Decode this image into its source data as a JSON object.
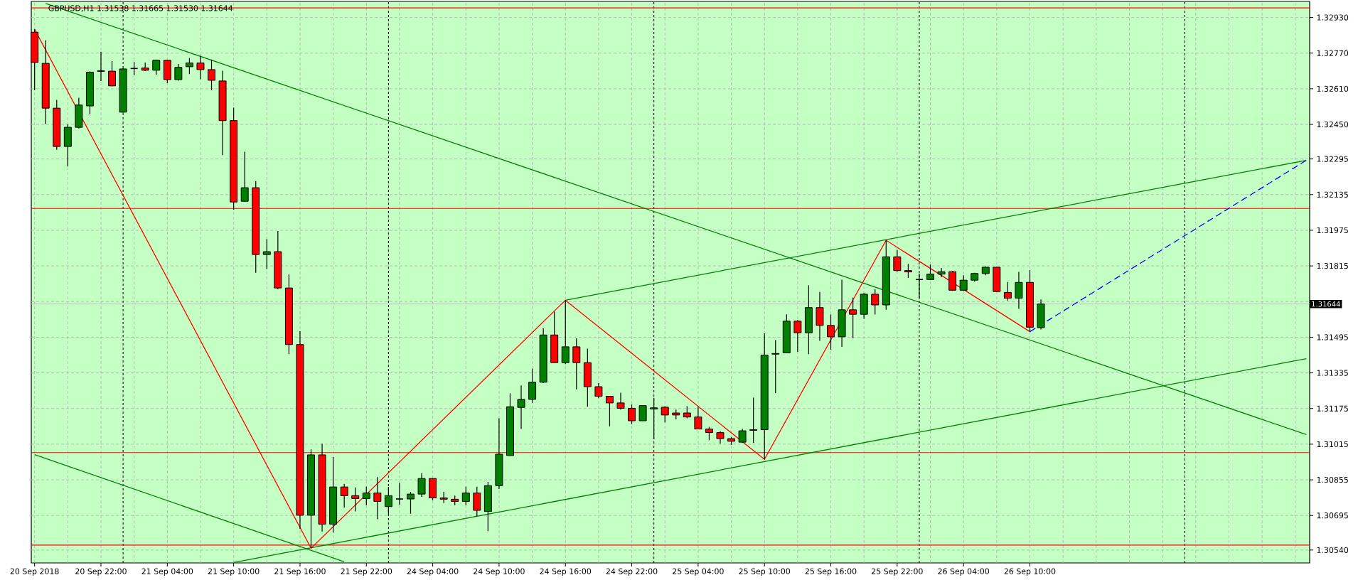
{
  "chart_data": {
    "type": "candlestick",
    "title": "GBPUSD,H1  1.31538 1.31665 1.31530 1.31644",
    "categories": [
      "20 Sep 2018",
      null,
      null,
      null,
      null,
      null,
      "20 Sep 22:00",
      null,
      null,
      null,
      null,
      null,
      "21 Sep 04:00",
      null,
      null,
      null,
      null,
      null,
      "21 Sep 10:00",
      null,
      null,
      null,
      null,
      null,
      "21 Sep 16:00",
      null,
      null,
      null,
      null,
      null,
      "21 Sep 22:00",
      null,
      null,
      null,
      null,
      null,
      "24 Sep 04:00",
      null,
      null,
      null,
      null,
      null,
      "24 Sep 10:00",
      null,
      null,
      null,
      null,
      null,
      "24 Sep 16:00",
      null,
      null,
      null,
      null,
      null,
      "24 Sep 22:00",
      null,
      null,
      null,
      null,
      null,
      "25 Sep 04:00",
      null,
      null,
      null,
      null,
      null,
      "25 Sep 10:00",
      null,
      null,
      null,
      null,
      null,
      "25 Sep 16:00",
      null,
      null,
      null,
      null,
      null,
      "25 Sep 22:00",
      null,
      null,
      null,
      null,
      null,
      "26 Sep 04:00",
      null,
      null,
      null,
      null,
      null,
      "26 Sep 10:00",
      null,
      null,
      null,
      null,
      null,
      null,
      null,
      null,
      null,
      null,
      null,
      null,
      null,
      null,
      null,
      null,
      null,
      null,
      null,
      null,
      null,
      null,
      null,
      null,
      null
    ],
    "ohlc": [
      [
        1.32864,
        1.32877,
        1.32603,
        1.32728
      ],
      [
        1.32724,
        1.32827,
        1.32452,
        1.32523
      ],
      [
        1.32523,
        1.3256,
        1.32336,
        1.32351
      ],
      [
        1.32351,
        1.3245,
        1.32261,
        1.32437
      ],
      [
        1.32437,
        1.3257,
        1.32432,
        1.32537
      ],
      [
        1.32533,
        1.32688,
        1.32495,
        1.32684
      ],
      [
        1.32688,
        1.32776,
        1.32645,
        1.32691
      ],
      [
        1.32689,
        1.32734,
        1.32621,
        1.32623
      ],
      [
        1.32505,
        1.32703,
        1.32503,
        1.32699
      ],
      [
        1.32701,
        1.32731,
        1.3267,
        1.32701
      ],
      [
        1.32703,
        1.32728,
        1.32689,
        1.32693
      ],
      [
        1.32693,
        1.32741,
        1.32673,
        1.32738
      ],
      [
        1.32738,
        1.32739,
        1.32635,
        1.32651
      ],
      [
        1.32651,
        1.32721,
        1.32646,
        1.32706
      ],
      [
        1.32709,
        1.32748,
        1.32676,
        1.32726
      ],
      [
        1.32726,
        1.32758,
        1.32653,
        1.32696
      ],
      [
        1.32696,
        1.32741,
        1.32603,
        1.32648
      ],
      [
        1.32645,
        1.32691,
        1.32312,
        1.32467
      ],
      [
        1.32467,
        1.32525,
        1.32067,
        1.32102
      ],
      [
        1.32105,
        1.32327,
        1.32103,
        1.32166
      ],
      [
        1.32166,
        1.32196,
        1.31784,
        1.31866
      ],
      [
        1.31866,
        1.31935,
        1.31801,
        1.31879
      ],
      [
        1.31879,
        1.31972,
        1.3171,
        1.31716
      ],
      [
        1.31716,
        1.31776,
        1.31419,
        1.31462
      ],
      [
        1.31462,
        1.31522,
        1.30635,
        1.30696
      ],
      [
        1.30696,
        1.30992,
        1.30549,
        1.30967
      ],
      [
        1.30967,
        1.31017,
        1.30623,
        1.30656
      ],
      [
        1.30656,
        1.30957,
        1.30618,
        1.30823
      ],
      [
        1.30823,
        1.30837,
        1.30731,
        1.30784
      ],
      [
        1.30784,
        1.30821,
        1.30713,
        1.30771
      ],
      [
        1.30771,
        1.30824,
        1.30741,
        1.30796
      ],
      [
        1.30796,
        1.30867,
        1.30678,
        1.30758
      ],
      [
        1.30735,
        1.30823,
        1.30701,
        1.30784
      ],
      [
        1.30769,
        1.30842,
        1.30743,
        1.30769
      ],
      [
        1.30769,
        1.30801,
        1.30703,
        1.30791
      ],
      [
        1.30791,
        1.30884,
        1.30779,
        1.30861
      ],
      [
        1.30861,
        1.30861,
        1.30764,
        1.30774
      ],
      [
        1.30774,
        1.30801,
        1.30751,
        1.30768
      ],
      [
        1.30768,
        1.30784,
        1.30741,
        1.30758
      ],
      [
        1.30758,
        1.30824,
        1.30741,
        1.30796
      ],
      [
        1.30796,
        1.30824,
        1.30691,
        1.30718
      ],
      [
        1.30713,
        1.30846,
        1.30625,
        1.30829
      ],
      [
        1.30829,
        1.31131,
        1.30814,
        1.3097
      ],
      [
        1.30964,
        1.31243,
        1.30964,
        1.31183
      ],
      [
        1.3118,
        1.31279,
        1.31083,
        1.31216
      ],
      [
        1.31216,
        1.31354,
        1.312,
        1.31293
      ],
      [
        1.31293,
        1.31535,
        1.31289,
        1.31505
      ],
      [
        1.31505,
        1.3161,
        1.31381,
        1.31381
      ],
      [
        1.31381,
        1.31661,
        1.31374,
        1.31452
      ],
      [
        1.31452,
        1.3149,
        1.31261,
        1.31381
      ],
      [
        1.31381,
        1.31444,
        1.31183,
        1.31273
      ],
      [
        1.31273,
        1.31289,
        1.31221,
        1.3123
      ],
      [
        1.3123,
        1.3123,
        1.31095,
        1.312
      ],
      [
        1.312,
        1.31246,
        1.3117,
        1.31176
      ],
      [
        1.31176,
        1.31193,
        1.31105,
        1.3112
      ],
      [
        1.3112,
        1.31188,
        1.3112,
        1.31188
      ],
      [
        1.31173,
        1.31223,
        1.31037,
        1.31178
      ],
      [
        1.31181,
        1.31185,
        1.31113,
        1.31146
      ],
      [
        1.31155,
        1.3117,
        1.31126,
        1.31146
      ],
      [
        1.31155,
        1.31185,
        1.31131,
        1.31137
      ],
      [
        1.31137,
        1.31183,
        1.31083,
        1.31083
      ],
      [
        1.31083,
        1.31093,
        1.31033,
        1.31067
      ],
      [
        1.31067,
        1.31073,
        1.31017,
        1.3104
      ],
      [
        1.3104,
        1.31047,
        1.31012,
        1.31028
      ],
      [
        1.31024,
        1.31083,
        1.3102,
        1.31075
      ],
      [
        1.31077,
        1.31224,
        1.3102,
        1.3108
      ],
      [
        1.3108,
        1.31512,
        1.30947,
        1.31415
      ],
      [
        1.31419,
        1.31482,
        1.31244,
        1.31422
      ],
      [
        1.31425,
        1.31598,
        1.31425,
        1.31567
      ],
      [
        1.31567,
        1.31572,
        1.31429,
        1.31515
      ],
      [
        1.31515,
        1.31728,
        1.31419,
        1.31628
      ],
      [
        1.31628,
        1.31698,
        1.31479,
        1.31548
      ],
      [
        1.31548,
        1.31597,
        1.31439,
        1.31497
      ],
      [
        1.31497,
        1.31753,
        1.31452,
        1.31618
      ],
      [
        1.31618,
        1.31673,
        1.3149,
        1.31598
      ],
      [
        1.31598,
        1.31693,
        1.31578,
        1.31688
      ],
      [
        1.31688,
        1.3171,
        1.31597,
        1.3164
      ],
      [
        1.3164,
        1.3193,
        1.31618,
        1.31856
      ],
      [
        1.31856,
        1.31887,
        1.31789,
        1.31794
      ],
      [
        1.31794,
        1.31824,
        1.31761,
        1.31788
      ],
      [
        1.31754,
        1.31781,
        1.31668,
        1.31754
      ],
      [
        1.31754,
        1.31821,
        1.31751,
        1.31778
      ],
      [
        1.31778,
        1.31806,
        1.31764,
        1.31789
      ],
      [
        1.31789,
        1.31793,
        1.31703,
        1.31706
      ],
      [
        1.31706,
        1.31773,
        1.31703,
        1.31751
      ],
      [
        1.31751,
        1.31784,
        1.31744,
        1.31781
      ],
      [
        1.31781,
        1.31814,
        1.31773,
        1.31809
      ],
      [
        1.31809,
        1.31811,
        1.31698,
        1.317
      ],
      [
        1.31696,
        1.31743,
        1.3166,
        1.3167
      ],
      [
        1.3167,
        1.31788,
        1.31622,
        1.31741
      ],
      [
        1.31741,
        1.31796,
        1.3152,
        1.3154
      ],
      [
        1.31538,
        1.31665,
        1.3153,
        1.31644
      ],
      null,
      null,
      null,
      null,
      null,
      null,
      null,
      null,
      null,
      null,
      null,
      null,
      null,
      null,
      null,
      null,
      null,
      null,
      null,
      null,
      null,
      null,
      null,
      null
    ],
    "colors": [
      "#ff0000",
      "#ff0000",
      "#ff0000",
      "#008000",
      "#008000",
      "#008000",
      "#008000",
      "#ff0000",
      "#008000",
      "#000000",
      "#ff0000",
      "#008000",
      "#ff0000",
      "#008000",
      "#008000",
      "#ff0000",
      "#ff0000",
      "#ff0000",
      "#ff0000",
      "#008000",
      "#ff0000",
      "#008000",
      "#ff0000",
      "#ff0000",
      "#ff0000",
      "#008000",
      "#ff0000",
      "#008000",
      "#ff0000",
      "#ff0000",
      "#008000",
      "#ff0000",
      "#008000",
      "#000000",
      "#008000",
      "#008000",
      "#ff0000",
      "#ff0000",
      "#ff0000",
      "#008000",
      "#ff0000",
      "#008000",
      "#008000",
      "#008000",
      "#008000",
      "#008000",
      "#008000",
      "#ff0000",
      "#008000",
      "#ff0000",
      "#ff0000",
      "#ff0000",
      "#ff0000",
      "#ff0000",
      "#ff0000",
      "#008000",
      "#008000",
      "#ff0000",
      "#ff0000",
      "#ff0000",
      "#ff0000",
      "#ff0000",
      "#ff0000",
      "#ff0000",
      "#008000",
      "#008000",
      "#008000",
      "#008000",
      "#008000",
      "#ff0000",
      "#008000",
      "#ff0000",
      "#ff0000",
      "#008000",
      "#ff0000",
      "#008000",
      "#ff0000",
      "#008000",
      "#ff0000",
      "#ff0000",
      "#000000",
      "#008000",
      "#008000",
      "#ff0000",
      "#008000",
      "#008000",
      "#008000",
      "#ff0000",
      "#ff0000",
      "#008000",
      "#ff0000",
      "#008000",
      null,
      null,
      null,
      null,
      null,
      null,
      null,
      null,
      null,
      null,
      null,
      null,
      null,
      null,
      null,
      null,
      null,
      null,
      null,
      null,
      null,
      null,
      null,
      null
    ],
    "series": [
      {
        "type": "line",
        "color": "#008000",
        "values": [
          null,
          1.32993,
          null,
          null,
          null,
          null,
          null,
          null,
          null,
          null,
          null,
          null,
          null,
          null,
          null,
          null,
          null,
          null,
          null,
          null,
          null,
          null,
          null,
          null,
          null,
          null,
          null,
          null,
          null,
          null,
          null,
          null,
          null,
          null,
          null,
          null,
          null,
          null,
          null,
          null,
          null,
          null,
          null,
          null,
          null,
          null,
          null,
          null,
          null,
          null,
          null,
          null,
          null,
          null,
          null,
          null,
          null,
          null,
          null,
          null,
          null,
          null,
          null,
          null,
          null,
          null,
          null,
          null,
          null,
          null,
          null,
          null,
          null,
          null,
          null,
          null,
          null,
          null,
          null,
          null,
          null,
          null,
          null,
          null,
          null,
          null,
          null,
          null,
          null,
          null,
          null,
          null,
          null,
          null,
          null,
          null,
          null,
          null,
          null,
          null,
          null,
          null,
          null,
          null,
          null,
          null,
          null,
          null,
          null,
          null,
          null,
          null,
          null,
          null,
          null,
          1.31058
        ]
      },
      {
        "type": "line",
        "color": "#008000",
        "values": [
          1.30968,
          null,
          null,
          null,
          null,
          null,
          null,
          null,
          null,
          null,
          null,
          null,
          null,
          null,
          null,
          null,
          null,
          null,
          null,
          null,
          null,
          null,
          null,
          null,
          null,
          null,
          null,
          null,
          1.30487,
          null,
          null,
          null,
          null,
          null,
          null,
          null,
          null,
          null,
          null,
          null,
          null,
          null,
          null,
          null,
          null,
          null,
          null,
          null,
          null,
          null,
          null,
          null,
          null,
          null,
          null,
          null,
          null,
          null,
          null,
          null,
          null,
          null,
          null,
          null,
          null,
          null,
          null,
          null,
          null,
          null,
          null,
          null,
          null,
          null,
          null,
          null,
          null,
          null,
          null,
          null,
          null,
          null,
          null,
          null,
          null,
          null,
          null,
          null,
          null,
          null,
          null,
          null,
          null,
          null,
          null,
          null,
          null,
          null,
          null,
          null,
          null,
          null,
          null,
          null,
          null,
          null,
          null,
          null,
          null,
          null,
          null,
          null,
          null,
          null,
          null,
          null
        ]
      },
      {
        "type": "line",
        "color": "#008000",
        "values": [
          null,
          null,
          null,
          null,
          null,
          null,
          null,
          null,
          null,
          null,
          null,
          null,
          null,
          null,
          null,
          null,
          null,
          null,
          null,
          null,
          null,
          null,
          null,
          null,
          null,
          null,
          null,
          null,
          null,
          null,
          null,
          null,
          null,
          null,
          null,
          null,
          null,
          null,
          null,
          null,
          null,
          null,
          null,
          null,
          null,
          null,
          null,
          null,
          1.31661,
          null,
          null,
          null,
          null,
          null,
          null,
          null,
          null,
          null,
          null,
          null,
          null,
          null,
          null,
          null,
          null,
          null,
          null,
          null,
          null,
          null,
          null,
          null,
          null,
          null,
          null,
          null,
          null,
          null,
          null,
          null,
          null,
          null,
          null,
          null,
          null,
          null,
          null,
          null,
          null,
          null,
          null,
          null,
          null,
          null,
          null,
          null,
          null,
          null,
          null,
          null,
          null,
          null,
          null,
          null,
          null,
          null,
          null,
          null,
          null,
          null,
          null,
          null,
          null,
          null,
          null,
          1.32289
        ]
      },
      {
        "type": "line",
        "color": "#008000",
        "values": [
          null,
          null,
          null,
          null,
          null,
          null,
          null,
          null,
          null,
          null,
          null,
          null,
          null,
          null,
          null,
          null,
          null,
          null,
          1.30484,
          null,
          null,
          null,
          null,
          null,
          null,
          null,
          null,
          null,
          null,
          null,
          null,
          null,
          null,
          null,
          null,
          null,
          null,
          null,
          null,
          null,
          null,
          null,
          null,
          null,
          null,
          null,
          null,
          null,
          null,
          null,
          null,
          null,
          null,
          null,
          null,
          null,
          null,
          null,
          null,
          null,
          null,
          null,
          null,
          null,
          null,
          null,
          null,
          null,
          null,
          null,
          null,
          null,
          null,
          null,
          null,
          null,
          null,
          null,
          null,
          null,
          null,
          null,
          null,
          null,
          null,
          null,
          null,
          null,
          null,
          null,
          null,
          null,
          null,
          null,
          null,
          null,
          null,
          null,
          null,
          null,
          null,
          null,
          null,
          null,
          null,
          null,
          null,
          null,
          null,
          null,
          null,
          null,
          null,
          null,
          null,
          1.31399
        ]
      },
      {
        "type": "line",
        "color": "#ff0000",
        "values": [
          1.32877,
          null,
          null,
          null,
          null,
          null,
          null,
          null,
          null,
          null,
          null,
          null,
          null,
          null,
          null,
          null,
          null,
          null,
          null,
          null,
          null,
          null,
          null,
          null,
          null,
          1.30548,
          null,
          null,
          null,
          null,
          null,
          null,
          null,
          null,
          null,
          null,
          null,
          null,
          null,
          null,
          null,
          null,
          null,
          null,
          null,
          null,
          null,
          null,
          1.31661,
          null,
          null,
          null,
          null,
          null,
          null,
          null,
          null,
          null,
          null,
          null,
          null,
          null,
          null,
          null,
          null,
          null,
          1.30947,
          null,
          null,
          null,
          null,
          null,
          null,
          null,
          null,
          null,
          null,
          1.3193,
          null,
          null,
          null,
          null,
          null,
          null,
          null,
          null,
          null,
          null,
          null,
          null,
          1.3152,
          null,
          null,
          null,
          null,
          null,
          null,
          null,
          null,
          null,
          null,
          null,
          null,
          null,
          null,
          null,
          null,
          null,
          null,
          null,
          null,
          null,
          null,
          null,
          null,
          null
        ]
      },
      {
        "type": "line",
        "color": "#0000ff",
        "line_style": "dashed",
        "values": [
          null,
          null,
          null,
          null,
          null,
          null,
          null,
          null,
          null,
          null,
          null,
          null,
          null,
          null,
          null,
          null,
          null,
          null,
          null,
          null,
          null,
          null,
          null,
          null,
          null,
          null,
          null,
          null,
          null,
          null,
          null,
          null,
          null,
          null,
          null,
          null,
          null,
          null,
          null,
          null,
          null,
          null,
          null,
          null,
          null,
          null,
          null,
          null,
          null,
          null,
          null,
          null,
          null,
          null,
          null,
          null,
          null,
          null,
          null,
          null,
          null,
          null,
          null,
          null,
          null,
          null,
          null,
          null,
          null,
          null,
          null,
          null,
          null,
          null,
          null,
          null,
          null,
          null,
          null,
          null,
          null,
          null,
          null,
          null,
          null,
          null,
          null,
          null,
          null,
          null,
          1.3152,
          null,
          null,
          null,
          null,
          null,
          null,
          null,
          null,
          null,
          null,
          null,
          null,
          null,
          null,
          null,
          null,
          null,
          null,
          null,
          null,
          null,
          null,
          null,
          null,
          1.32289
        ]
      }
    ],
    "ref_lines": [
      {
        "axis": "y",
        "value": 1.32973,
        "color": "#ff0000"
      },
      {
        "axis": "y",
        "value": 1.32073,
        "color": "#ff0000"
      },
      {
        "axis": "y",
        "value": 1.30977,
        "color": "#ff0000"
      },
      {
        "axis": "y",
        "value": 1.30562,
        "color": "#ff0000"
      },
      {
        "axis": "y",
        "value": 1.31644,
        "label": "1.31644",
        "color": "#c0c0c0"
      }
    ],
    "ylim": [
      1.30482,
      1.33002
    ],
    "yticks": [
      {
        "value": 1.3054,
        "label": "1.30540"
      },
      {
        "value": 1.30695,
        "label": "1.30695"
      },
      {
        "value": 1.30855,
        "label": "1.30855"
      },
      {
        "value": 1.31015,
        "label": "1.31015"
      },
      {
        "value": 1.31175,
        "label": "1.31175"
      },
      {
        "value": 1.31335,
        "label": "1.31335"
      },
      {
        "value": 1.31495,
        "label": "1.31495"
      },
      {
        "value": 1.31655,
        "label": null
      },
      {
        "value": 1.31815,
        "label": "1.31815"
      },
      {
        "value": 1.31975,
        "label": "1.31975"
      },
      {
        "value": 1.32135,
        "label": "1.32135"
      },
      {
        "value": 1.32295,
        "label": "1.32295"
      },
      {
        "value": 1.3245,
        "label": "1.32450"
      },
      {
        "value": 1.3261,
        "label": "1.32610"
      },
      {
        "value": 1.3277,
        "label": "1.32770"
      },
      {
        "value": 1.3293,
        "label": "1.32930"
      }
    ],
    "grid": true
  }
}
